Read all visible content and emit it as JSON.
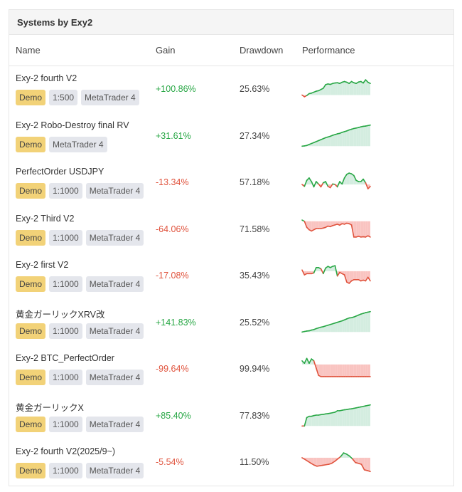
{
  "card": {
    "title": "Systems by Exy2",
    "columns": {
      "name": "Name",
      "gain": "Gain",
      "drawdown": "Drawdown",
      "performance": "Performance"
    }
  },
  "colors": {
    "positive": "#28a745",
    "negative": "#e0533d",
    "positive_fill": "#d4ede0",
    "negative_fill": "#f9c4c1",
    "demo_badge": "#f2d278",
    "badge": "#e4e6ec"
  },
  "systems": [
    {
      "name": "Exy-2 fourth V2",
      "badges": [
        "Demo",
        "1:500",
        "MetaTrader 4"
      ],
      "gain": "+100.86%",
      "gain_sign": "pos",
      "drawdown": "25.63%",
      "spark": {
        "base": 0.78,
        "points": [
          0.78,
          0.85,
          0.8,
          0.72,
          0.7,
          0.66,
          0.62,
          0.6,
          0.55,
          0.5,
          0.35,
          0.32,
          0.34,
          0.3,
          0.28,
          0.27,
          0.3,
          0.25,
          0.22,
          0.25,
          0.3,
          0.22,
          0.27,
          0.3,
          0.24,
          0.22,
          0.28,
          0.15,
          0.25,
          0.3
        ]
      }
    },
    {
      "name": "Exy-2 Robo-Destroy final RV",
      "badges": [
        "Demo",
        "MetaTrader 4"
      ],
      "gain": "+31.61%",
      "gain_sign": "pos",
      "drawdown": "27.34%",
      "spark": {
        "base": 0.95,
        "points": [
          0.95,
          0.94,
          0.92,
          0.88,
          0.84,
          0.8,
          0.76,
          0.72,
          0.68,
          0.64,
          0.6,
          0.57,
          0.54,
          0.5,
          0.47,
          0.44,
          0.42,
          0.38,
          0.35,
          0.32,
          0.28,
          0.25,
          0.22,
          0.2,
          0.18,
          0.15,
          0.13,
          0.12,
          0.1,
          0.08
        ]
      }
    },
    {
      "name": "PerfectOrder USDJPY",
      "badges": [
        "Demo",
        "1:1000",
        "MetaTrader 4"
      ],
      "gain": "-13.34%",
      "gain_sign": "neg",
      "drawdown": "57.18%",
      "spark": {
        "base": 0.62,
        "points": [
          0.62,
          0.7,
          0.45,
          0.35,
          0.5,
          0.72,
          0.5,
          0.6,
          0.72,
          0.55,
          0.5,
          0.7,
          0.75,
          0.6,
          0.62,
          0.72,
          0.5,
          0.6,
          0.35,
          0.2,
          0.15,
          0.18,
          0.25,
          0.45,
          0.5,
          0.5,
          0.4,
          0.55,
          0.8,
          0.7
        ]
      }
    },
    {
      "name": "Exy-2 Third V2",
      "badges": [
        "Demo",
        "1:1000",
        "MetaTrader 4"
      ],
      "gain": "-64.06%",
      "gain_sign": "neg",
      "drawdown": "71.58%",
      "spark": {
        "base": 0.2,
        "points": [
          0.15,
          0.2,
          0.45,
          0.55,
          0.6,
          0.55,
          0.5,
          0.5,
          0.5,
          0.48,
          0.45,
          0.4,
          0.42,
          0.38,
          0.35,
          0.32,
          0.36,
          0.3,
          0.32,
          0.28,
          0.3,
          0.35,
          0.85,
          0.85,
          0.82,
          0.85,
          0.84,
          0.85,
          0.8,
          0.85
        ]
      }
    },
    {
      "name": "Exy-2 first V2",
      "badges": [
        "Demo",
        "1:1000",
        "MetaTrader 4"
      ],
      "gain": "-17.08%",
      "gain_sign": "neg",
      "drawdown": "35.43%",
      "spark": {
        "base": 0.35,
        "points": [
          0.3,
          0.5,
          0.45,
          0.45,
          0.45,
          0.42,
          0.2,
          0.2,
          0.25,
          0.45,
          0.22,
          0.15,
          0.2,
          0.15,
          0.12,
          0.55,
          0.4,
          0.45,
          0.5,
          0.8,
          0.85,
          0.75,
          0.7,
          0.7,
          0.7,
          0.75,
          0.72,
          0.75,
          0.6,
          0.75
        ]
      }
    },
    {
      "name": "黄金ガーリックXRV改",
      "badges": [
        "Demo",
        "1:1000",
        "MetaTrader 4"
      ],
      "gain": "+141.83%",
      "gain_sign": "pos",
      "drawdown": "25.52%",
      "spark": {
        "base": 0.92,
        "points": [
          0.92,
          0.9,
          0.88,
          0.87,
          0.84,
          0.82,
          0.78,
          0.75,
          0.72,
          0.7,
          0.67,
          0.64,
          0.61,
          0.58,
          0.55,
          0.52,
          0.49,
          0.46,
          0.42,
          0.38,
          0.34,
          0.33,
          0.3,
          0.26,
          0.22,
          0.18,
          0.15,
          0.12,
          0.1,
          0.08
        ]
      }
    },
    {
      "name": "Exy-2 BTC_PerfectOrder",
      "badges": [
        "Demo",
        "1:1000",
        "MetaTrader 4"
      ],
      "gain": "-99.64%",
      "gain_sign": "neg",
      "drawdown": "99.94%",
      "spark": {
        "base": 0.35,
        "points": [
          0.2,
          0.3,
          0.1,
          0.3,
          0.12,
          0.2,
          0.5,
          0.8,
          0.85,
          0.85,
          0.85,
          0.85,
          0.85,
          0.85,
          0.85,
          0.85,
          0.85,
          0.85,
          0.85,
          0.85,
          0.85,
          0.85,
          0.85,
          0.85,
          0.85,
          0.85,
          0.85,
          0.85,
          0.85,
          0.85
        ]
      }
    },
    {
      "name": "黄金ガーリックX",
      "badges": [
        "Demo",
        "1:1000",
        "MetaTrader 4"
      ],
      "gain": "+85.40%",
      "gain_sign": "pos",
      "drawdown": "77.83%",
      "spark": {
        "base": 0.95,
        "points": [
          0.95,
          0.95,
          0.6,
          0.55,
          0.55,
          0.52,
          0.5,
          0.5,
          0.48,
          0.47,
          0.45,
          0.44,
          0.42,
          0.4,
          0.38,
          0.32,
          0.32,
          0.3,
          0.28,
          0.27,
          0.25,
          0.24,
          0.22,
          0.2,
          0.18,
          0.16,
          0.14,
          0.12,
          0.1,
          0.08
        ]
      }
    },
    {
      "name": "Exy-2 fourth V2(2025/9~)",
      "badges": [
        "Demo",
        "1:1000",
        "MetaTrader 4"
      ],
      "gain": "-5.54%",
      "gain_sign": "neg",
      "drawdown": "11.50%",
      "spark": {
        "base": 0.35,
        "points": [
          0.35,
          0.42,
          0.5,
          0.58,
          0.65,
          0.7,
          0.68,
          0.66,
          0.64,
          0.62,
          0.58,
          0.5,
          0.4,
          0.3,
          0.15,
          0.2,
          0.28,
          0.4,
          0.55,
          0.58,
          0.62,
          0.85,
          0.88,
          0.92
        ]
      }
    }
  ]
}
